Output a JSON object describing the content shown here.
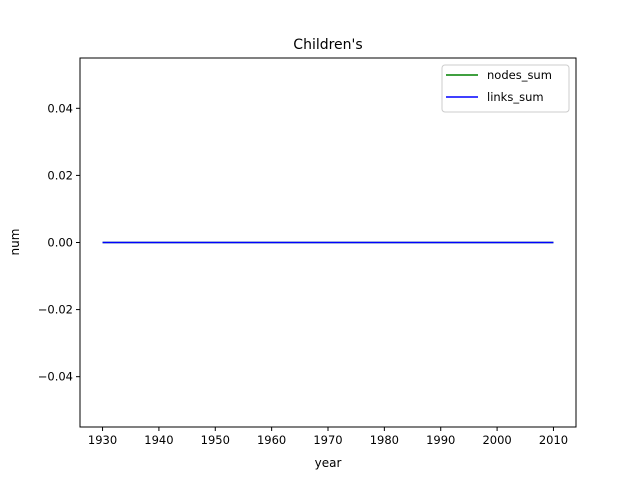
{
  "chart_data": {
    "type": "line",
    "title": "Children's",
    "xlabel": "year",
    "ylabel": "num",
    "x": [
      1930,
      1940,
      1950,
      1960,
      1970,
      1980,
      1990,
      2000,
      2010
    ],
    "series": [
      {
        "name": "nodes_sum",
        "color": "#008000",
        "values": [
          0,
          0,
          0,
          0,
          0,
          0,
          0,
          0,
          0
        ]
      },
      {
        "name": "links_sum",
        "color": "#0000ff",
        "values": [
          0,
          0,
          0,
          0,
          0,
          0,
          0,
          0,
          0
        ]
      }
    ],
    "xlim": [
      1926,
      2014
    ],
    "ylim": [
      -0.055,
      0.055
    ],
    "xticks": [
      1930,
      1940,
      1950,
      1960,
      1970,
      1980,
      1990,
      2000,
      2010
    ],
    "xtick_labels": [
      "1930",
      "1940",
      "1950",
      "1960",
      "1970",
      "1980",
      "1990",
      "2000",
      "2010"
    ],
    "yticks": [
      -0.04,
      -0.02,
      0.0,
      0.02,
      0.04
    ],
    "ytick_labels": [
      "−0.04",
      "−0.02",
      "0.00",
      "0.02",
      "0.04"
    ],
    "grid": false,
    "legend": "top-right"
  }
}
